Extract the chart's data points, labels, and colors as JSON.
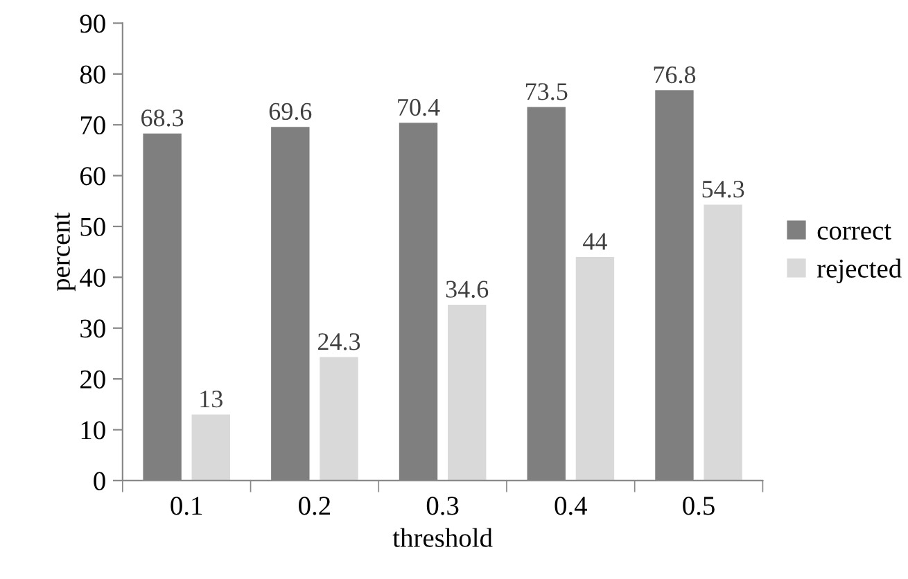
{
  "chart_data": {
    "type": "bar",
    "xlabel": "threshold",
    "ylabel": "percent",
    "categories": [
      "0.1",
      "0.2",
      "0.3",
      "0.4",
      "0.5"
    ],
    "series": [
      {
        "name": "correct",
        "color": "#7f7f7f",
        "values": [
          68.3,
          69.6,
          70.4,
          73.5,
          76.8
        ]
      },
      {
        "name": "rejected",
        "color": "#d9d9d9",
        "values": [
          13,
          24.3,
          34.6,
          44,
          54.3
        ]
      }
    ],
    "ylim": [
      0,
      90
    ],
    "yticks": [
      0,
      10,
      20,
      30,
      40,
      50,
      60,
      70,
      80,
      90
    ],
    "data_labels": true,
    "grid": false,
    "legend": "right"
  }
}
